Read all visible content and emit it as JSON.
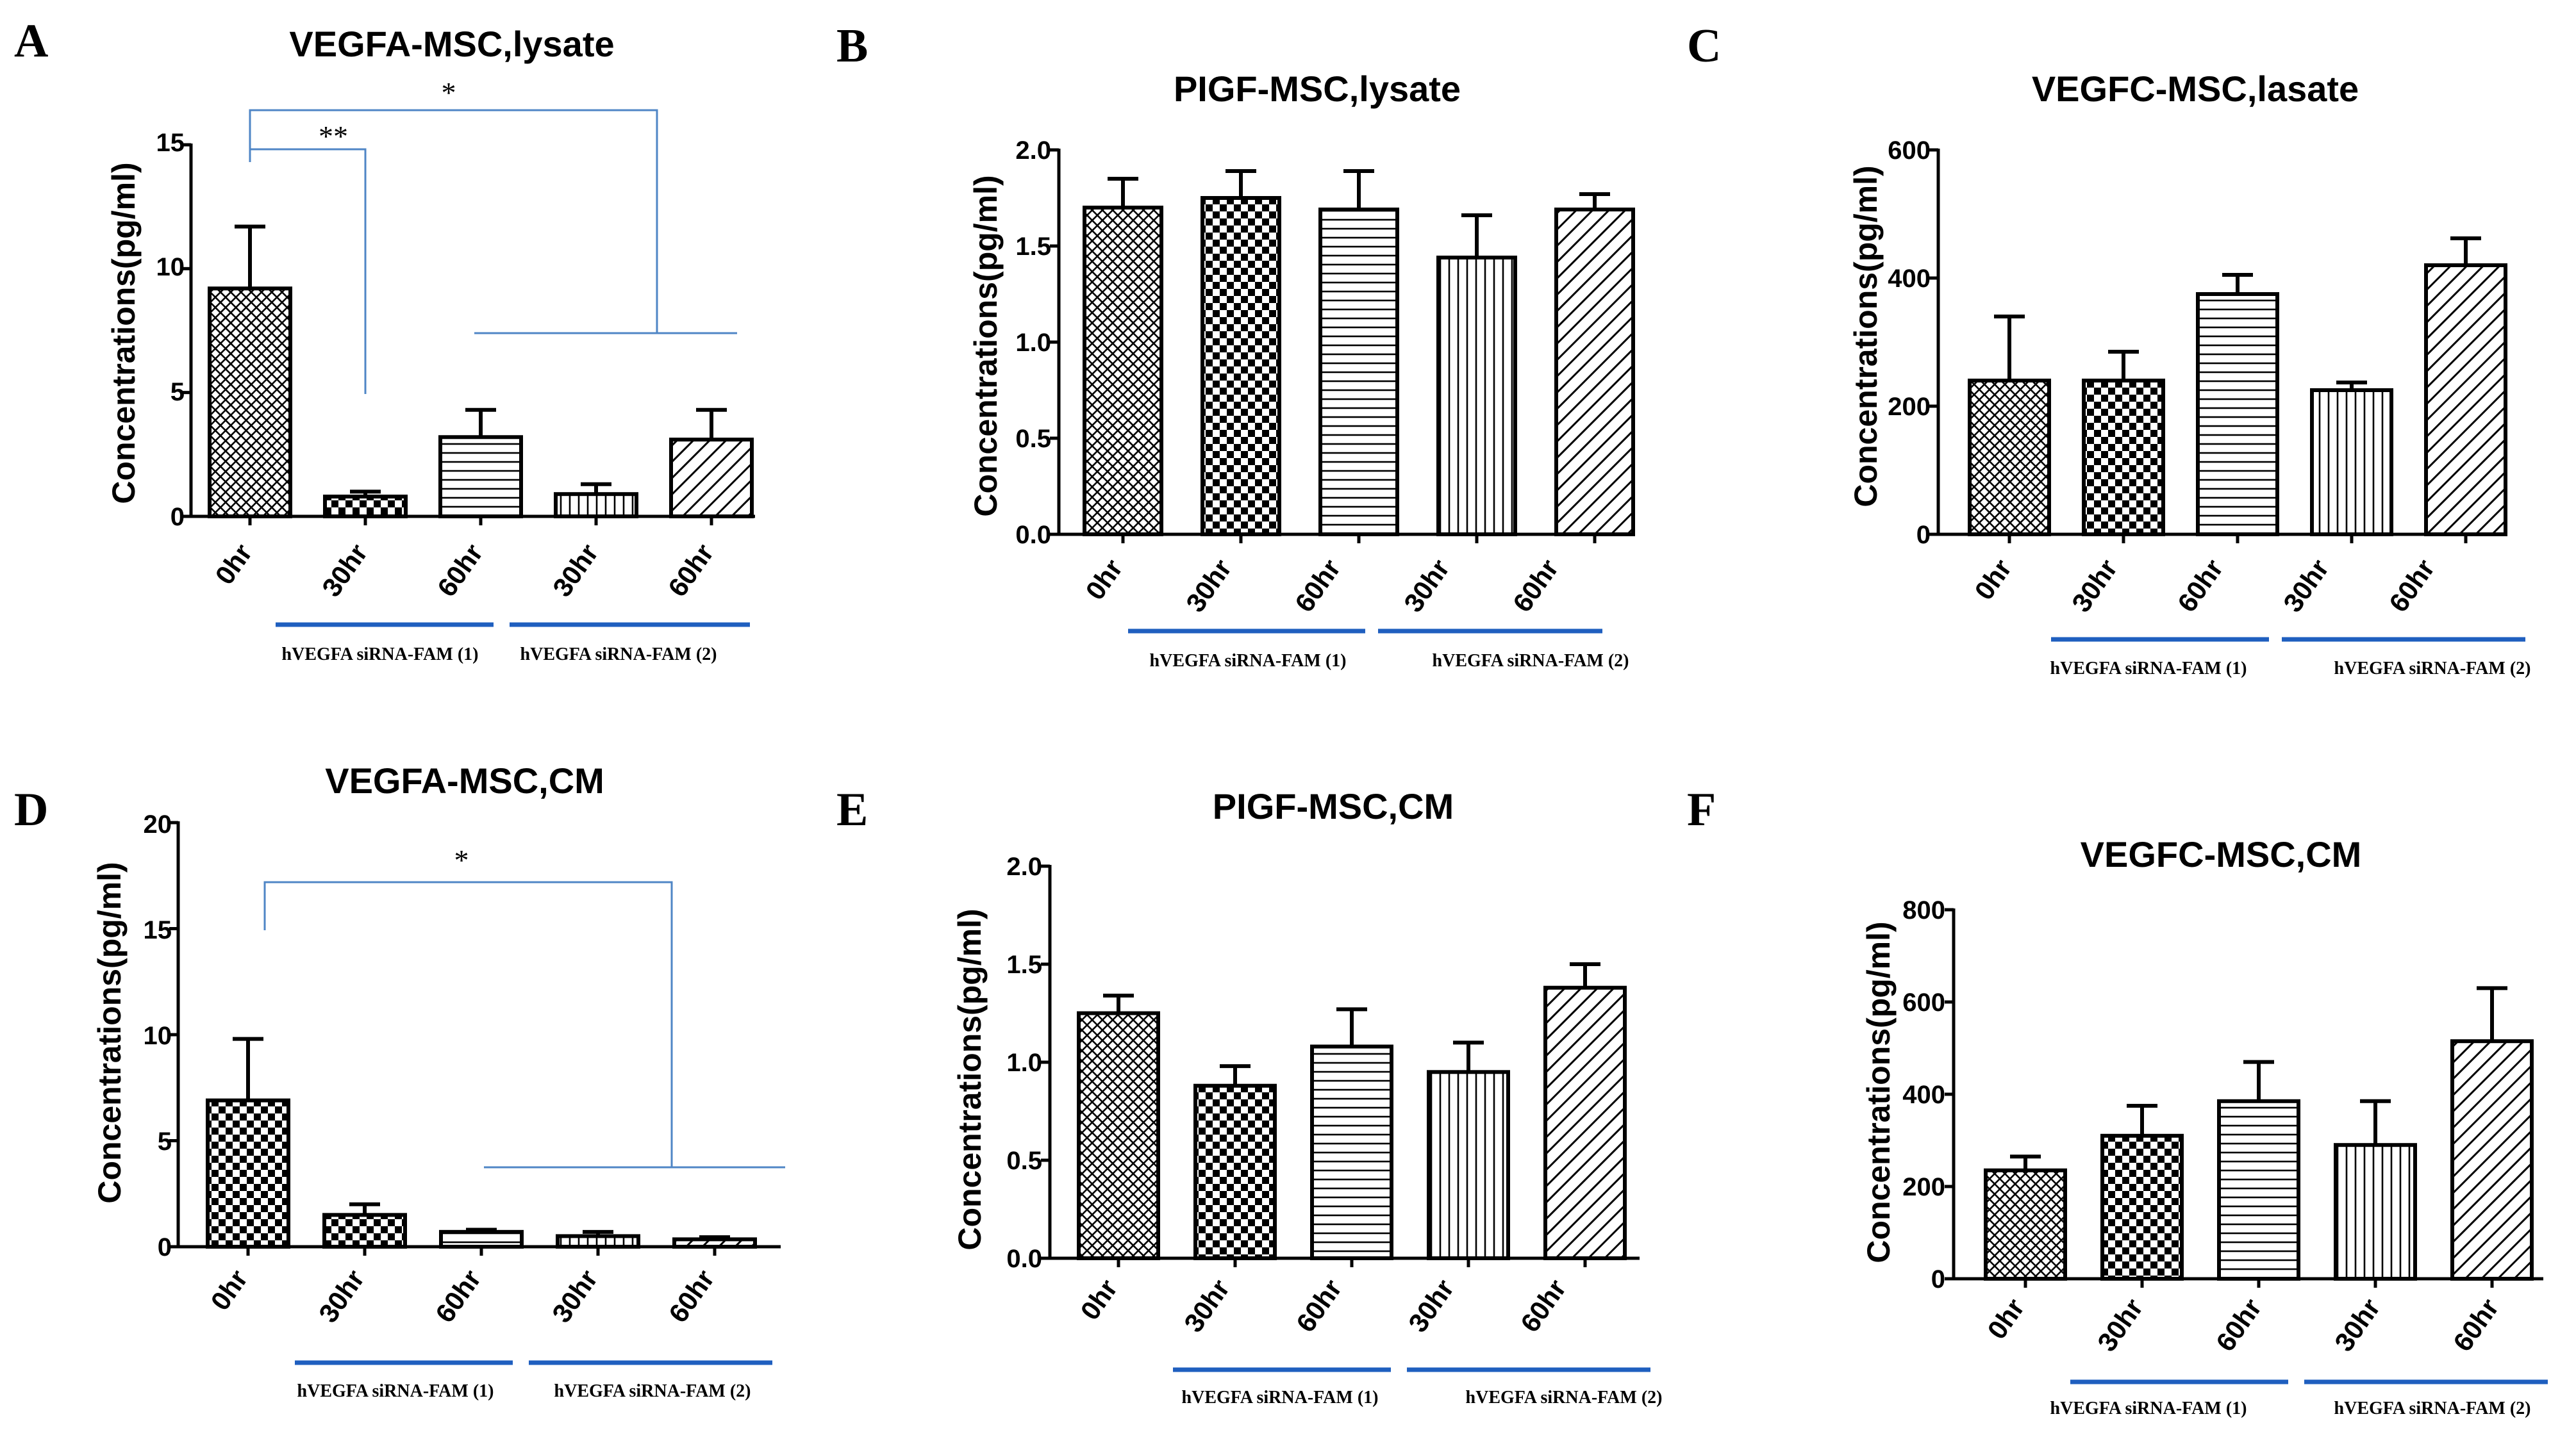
{
  "figure": {
    "colors": {
      "axis": "#000000",
      "bar_stroke": "#000000",
      "bracket": "#4f86c6",
      "group_line": "#1f5fbf"
    },
    "categories": [
      "0hr",
      "30hr",
      "60hr",
      "30hr",
      "60hr"
    ],
    "groups": [
      "hVEGFA siRNA-FAM (1)",
      "hVEGFA siRNA-FAM (2)"
    ]
  },
  "chart_data": [
    {
      "panel": "A",
      "type": "bar",
      "title": "VEGFA-MSC,lysate",
      "ylabel": "Concentrations(pg/ml)",
      "ylim": [
        0,
        15
      ],
      "yticks": [
        0,
        5,
        10,
        15
      ],
      "ytick_labels": [
        "0",
        "5",
        "10",
        "15"
      ],
      "categories": [
        "0hr",
        "30hr",
        "60hr",
        "30hr",
        "60hr"
      ],
      "values": [
        9.2,
        0.8,
        3.2,
        0.9,
        3.1
      ],
      "errors": [
        2.5,
        0.2,
        1.1,
        0.4,
        1.2
      ],
      "patterns": [
        "p-grid",
        "p-check",
        "p-horiz",
        "p-vert",
        "p-diag"
      ],
      "groups": [
        "hVEGFA siRNA-FAM (1)",
        "hVEGFA siRNA-FAM (2)"
      ],
      "significance": [
        {
          "label": "**",
          "from": "0hr",
          "to": "30hr (1)",
          "level": 14.7
        },
        {
          "label": "*",
          "from": "0hr",
          "to": "siRNA-FAM (2) group",
          "level": 16.3
        }
      ]
    },
    {
      "panel": "B",
      "type": "bar",
      "title": "PIGF-MSC,lysate",
      "ylabel": "Concentrations(pg/ml)",
      "ylim": [
        0,
        2.0
      ],
      "yticks": [
        0,
        0.5,
        1.0,
        1.5,
        2.0
      ],
      "ytick_labels": [
        "0.0",
        "0.5",
        "1.0",
        "1.5",
        "2.0"
      ],
      "categories": [
        "0hr",
        "30hr",
        "60hr",
        "30hr",
        "60hr"
      ],
      "values": [
        1.7,
        1.75,
        1.69,
        1.44,
        1.69
      ],
      "errors": [
        0.15,
        0.14,
        0.2,
        0.22,
        0.08
      ],
      "patterns": [
        "p-grid",
        "p-check",
        "p-horiz",
        "p-vert",
        "p-diag"
      ],
      "groups": [
        "hVEGFA siRNA-FAM (1)",
        "hVEGFA siRNA-FAM (2)"
      ],
      "significance": []
    },
    {
      "panel": "C",
      "type": "bar",
      "title": "VEGFC-MSC,lasate",
      "ylabel": "Concentrations(pg/ml)",
      "ylim": [
        0,
        600
      ],
      "yticks": [
        0,
        200,
        400,
        600
      ],
      "ytick_labels": [
        "0",
        "200",
        "400",
        "600"
      ],
      "categories": [
        "0hr",
        "30hr",
        "60hr",
        "30hr",
        "60hr"
      ],
      "values": [
        240,
        240,
        375,
        225,
        420
      ],
      "errors": [
        100,
        45,
        30,
        12,
        42
      ],
      "patterns": [
        "p-grid",
        "p-check",
        "p-horiz",
        "p-vert",
        "p-diag"
      ],
      "groups": [
        "hVEGFA siRNA-FAM (1)",
        "hVEGFA siRNA-FAM (2)"
      ],
      "significance": []
    },
    {
      "panel": "D",
      "type": "bar",
      "title": "VEGFA-MSC,CM",
      "ylabel": "Concentrations(pg/ml)",
      "ylim": [
        0,
        20
      ],
      "yticks": [
        0,
        5,
        10,
        15,
        20
      ],
      "ytick_labels": [
        "0",
        "5",
        "10",
        "15",
        "20"
      ],
      "categories": [
        "0hr",
        "30hr",
        "60hr",
        "30hr",
        "60hr"
      ],
      "values": [
        6.9,
        1.5,
        0.7,
        0.5,
        0.35
      ],
      "errors": [
        2.9,
        0.5,
        0.1,
        0.2,
        0.1
      ],
      "patterns": [
        "p-check",
        "p-check",
        "p-horiz",
        "p-vert",
        "p-diag"
      ],
      "groups": [
        "hVEGFA siRNA-FAM (1)",
        "hVEGFA siRNA-FAM (2)"
      ],
      "significance": [
        {
          "label": "*",
          "from": "0hr",
          "to": "60hr (1) onward",
          "level": 17.5
        }
      ]
    },
    {
      "panel": "E",
      "type": "bar",
      "title": "PIGF-MSC,CM",
      "ylabel": "Concentrations(pg/ml)",
      "ylim": [
        0,
        2.0
      ],
      "yticks": [
        0,
        0.5,
        1.0,
        1.5,
        2.0
      ],
      "ytick_labels": [
        "0.0",
        "0.5",
        "1.0",
        "1.5",
        "2.0"
      ],
      "categories": [
        "0hr",
        "30hr",
        "60hr",
        "30hr",
        "60hr"
      ],
      "values": [
        1.25,
        0.88,
        1.08,
        0.95,
        1.38
      ],
      "errors": [
        0.09,
        0.1,
        0.19,
        0.15,
        0.12
      ],
      "patterns": [
        "p-grid",
        "p-check",
        "p-horiz",
        "p-vert",
        "p-diag"
      ],
      "groups": [
        "hVEGFA siRNA-FAM (1)",
        "hVEGFA siRNA-FAM (2)"
      ],
      "significance": []
    },
    {
      "panel": "F",
      "type": "bar",
      "title": "VEGFC-MSC,CM",
      "ylabel": "Concentrations(pg/ml)",
      "ylim": [
        0,
        800
      ],
      "yticks": [
        0,
        200,
        400,
        600,
        800
      ],
      "ytick_labels": [
        "0",
        "200",
        "400",
        "600",
        "800"
      ],
      "categories": [
        "0hr",
        "30hr",
        "60hr",
        "30hr",
        "60hr"
      ],
      "values": [
        235,
        310,
        385,
        290,
        515
      ],
      "errors": [
        30,
        65,
        85,
        95,
        115
      ],
      "patterns": [
        "p-grid",
        "p-check",
        "p-horiz",
        "p-vert",
        "p-diag"
      ],
      "groups": [
        "hVEGFA siRNA-FAM (1)",
        "hVEGFA siRNA-FAM (2)"
      ],
      "significance": []
    }
  ]
}
